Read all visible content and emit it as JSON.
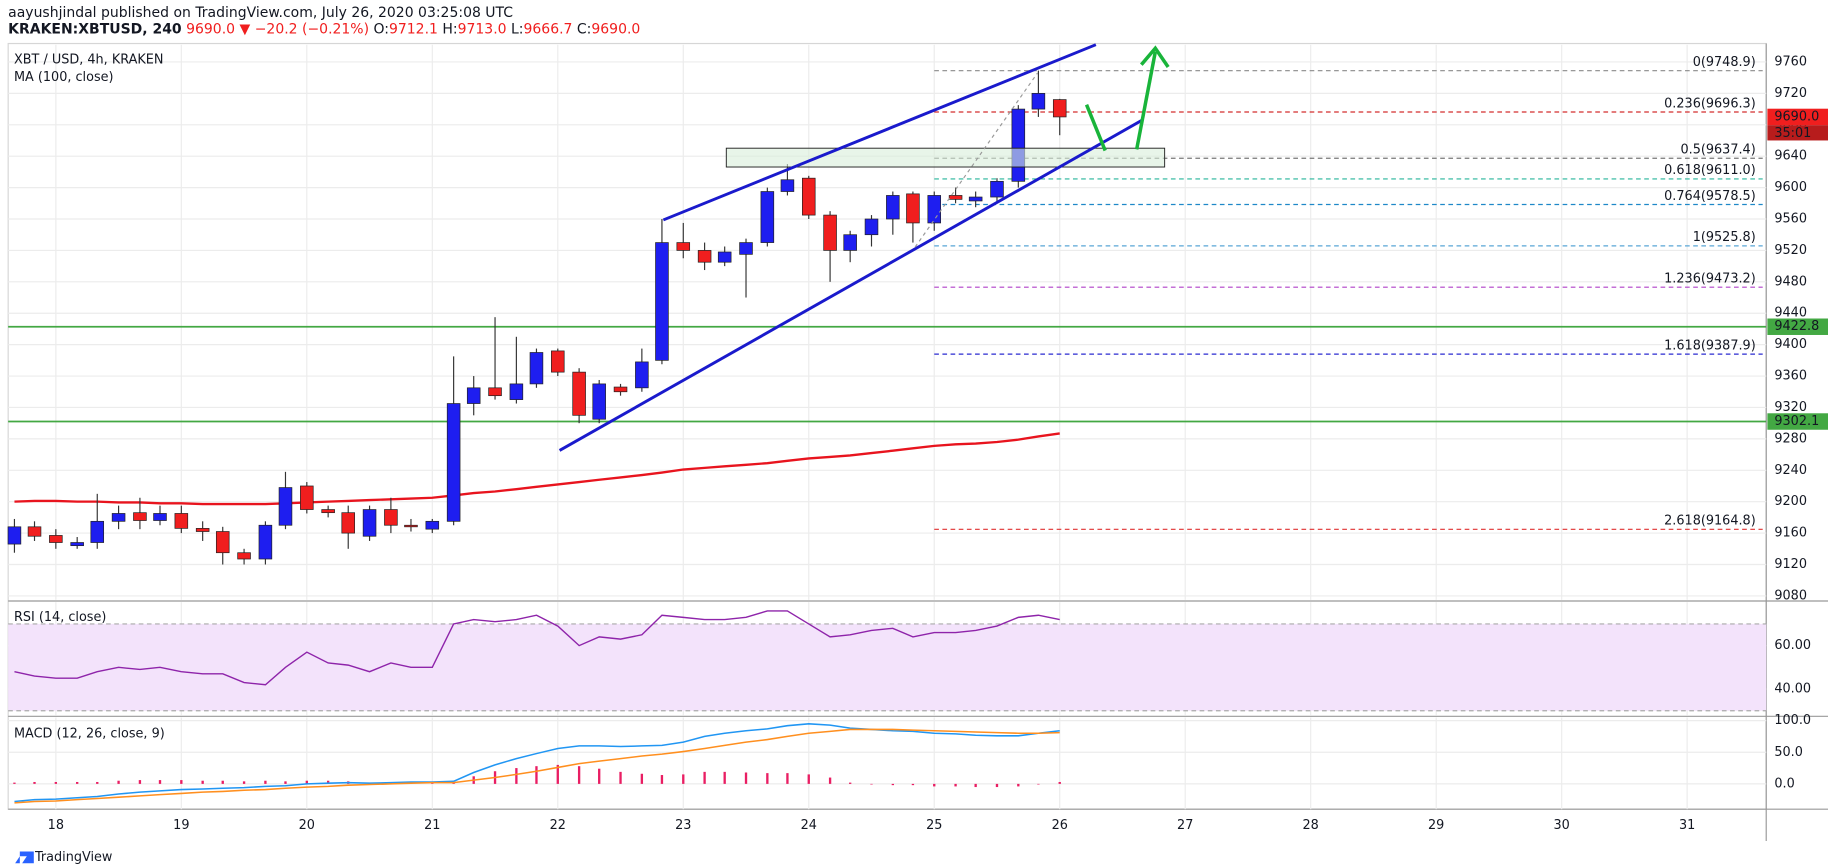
{
  "header": {
    "byline": "aayushjindal published on TradingView.com, July 26, 2020 03:25:08 UTC",
    "symbol": "KRAKEN:XBTUSD, 240",
    "last": "9690.0",
    "change": "▼ −20.2 (−0.21%)",
    "ohlc": [
      {
        "key": "O:",
        "value": "9712.1"
      },
      {
        "key": "H:",
        "value": "9713.0"
      },
      {
        "key": "L:",
        "value": "9666.7"
      },
      {
        "key": "C:",
        "value": "9690.0"
      }
    ]
  },
  "footer": {
    "brand": "TradingView"
  },
  "chart_data": [
    {
      "type": "candlestick",
      "title": "XBT / USD, 4h, KRAKEN",
      "x": [
        17.67,
        17.83,
        18,
        18.17,
        18.33,
        18.5,
        18.67,
        18.83,
        19,
        19.17,
        19.33,
        19.5,
        19.67,
        19.83,
        20,
        20.17,
        20.33,
        20.5,
        20.67,
        20.83,
        21,
        21.17,
        21.33,
        21.5,
        21.67,
        21.83,
        22,
        22.17,
        22.33,
        22.5,
        22.67,
        22.83,
        23,
        23.17,
        23.33,
        23.5,
        23.67,
        23.83,
        24,
        24.17,
        24.33,
        24.5,
        24.67,
        24.83,
        25,
        25.17,
        25.33,
        25.5,
        25.67,
        25.83,
        26
      ],
      "open": [
        9146,
        9168,
        9157,
        9144,
        9148,
        9175,
        9186,
        9176,
        9185,
        9166,
        9162,
        9135,
        9127,
        9170,
        9220,
        9190,
        9186,
        9156,
        9190,
        9170,
        9165,
        9175,
        9325,
        9345,
        9330,
        9350,
        9392,
        9365,
        9305,
        9346,
        9345,
        9380,
        9530,
        9520,
        9505,
        9515,
        9530,
        9595,
        9612,
        9565,
        9520,
        9540,
        9560,
        9592,
        9555,
        9590,
        9583,
        9588,
        9608,
        9700,
        9712.1
      ],
      "high": [
        9178,
        9175,
        9165,
        9155,
        9210,
        9195,
        9205,
        9195,
        9195,
        9175,
        9168,
        9140,
        9175,
        9238,
        9225,
        9195,
        9195,
        9195,
        9205,
        9178,
        9178,
        9385,
        9360,
        9435,
        9410,
        9395,
        9395,
        9370,
        9355,
        9350,
        9395,
        9560,
        9555,
        9530,
        9525,
        9535,
        9600,
        9630,
        9615,
        9570,
        9545,
        9565,
        9595,
        9595,
        9595,
        9600,
        9595,
        9612,
        9705,
        9749,
        9713
      ],
      "low": [
        9135,
        9150,
        9140,
        9140,
        9140,
        9165,
        9165,
        9170,
        9160,
        9150,
        9120,
        9120,
        9120,
        9165,
        9185,
        9180,
        9140,
        9150,
        9160,
        9162,
        9160,
        9170,
        9310,
        9330,
        9325,
        9345,
        9360,
        9300,
        9300,
        9335,
        9340,
        9375,
        9510,
        9495,
        9500,
        9460,
        9525,
        9590,
        9560,
        9480,
        9505,
        9525,
        9540,
        9530,
        9545,
        9580,
        9575,
        9580,
        9600,
        9690,
        9666.7
      ],
      "close": [
        9168,
        9156,
        9148,
        9148,
        9175,
        9185,
        9176,
        9185,
        9166,
        9162,
        9135,
        9127,
        9170,
        9218,
        9190,
        9186,
        9160,
        9190,
        9170,
        9168,
        9175,
        9325,
        9345,
        9335,
        9350,
        9390,
        9365,
        9310,
        9350,
        9340,
        9378,
        9530,
        9520,
        9505,
        9518,
        9530,
        9595,
        9610,
        9565,
        9520,
        9540,
        9560,
        9590,
        9555,
        9590,
        9585,
        9588,
        9608,
        9700,
        9720,
        9690
      ],
      "up_color": "#1e1ef0",
      "down_color": "#f01e1e",
      "xlim": [
        17.62,
        31.63
      ],
      "xticks": [
        18,
        19,
        20,
        21,
        22,
        23,
        24,
        25,
        26,
        27,
        28,
        29,
        30,
        31
      ],
      "ylim": [
        9075,
        9782
      ],
      "yticks": [
        9080,
        9120,
        9160,
        9200,
        9240,
        9280,
        9320,
        9360,
        9400,
        9440,
        9480,
        9520,
        9560,
        9600,
        9640,
        9680,
        9720,
        9760
      ],
      "grid": true,
      "series": [
        {
          "name": "MA (100, close)",
          "color": "#e8141e",
          "values": [
            9200,
            9201,
            9201,
            9200,
            9200,
            9199,
            9199,
            9198,
            9198,
            9197,
            9197,
            9197,
            9197,
            9198,
            9199,
            9200,
            9201,
            9202,
            9203,
            9204,
            9205,
            9208,
            9211,
            9213,
            9216,
            9219,
            9222,
            9225,
            9228,
            9231,
            9234,
            9237,
            9241,
            9243,
            9245,
            9247,
            9249,
            9252,
            9255,
            9257,
            9259,
            9262,
            9265,
            9268,
            9271,
            9273,
            9274,
            9276,
            9279,
            9283,
            9287
          ]
        }
      ],
      "hlines": [
        {
          "value": 9422.8,
          "label": "9422.8",
          "color": "#43a843"
        },
        {
          "value": 9302.1,
          "label": "9302.1",
          "color": "#43a843"
        }
      ],
      "fib_levels": [
        {
          "value": 9748.9,
          "label": "0(9748.9)",
          "color": "#8a8a8a"
        },
        {
          "value": 9696.3,
          "label": "0.236(9696.3)",
          "color": "#d32f2f"
        },
        {
          "value": 9637.4,
          "label": "0.5(9637.4)",
          "color": "#777777"
        },
        {
          "value": 9611.0,
          "label": "0.618(9611.0)",
          "color": "#26b59a"
        },
        {
          "value": 9578.5,
          "label": "0.764(9578.5)",
          "color": "#1e88c8"
        },
        {
          "value": 9525.8,
          "label": "1(9525.8)",
          "color": "#59a6d6"
        },
        {
          "value": 9473.2,
          "label": "1.236(9473.2)",
          "color": "#b040c8"
        },
        {
          "value": 9387.9,
          "label": "1.618(9387.9)",
          "color": "#2a2ad0"
        },
        {
          "value": 9164.8,
          "label": "2.618(9164.8)",
          "color": "#e03030"
        }
      ],
      "last_price": {
        "value": 9690,
        "label": "9690.0",
        "countdown": "35:01",
        "color": "#f01e1e"
      }
    },
    {
      "type": "line",
      "title": "RSI (14, close)",
      "series": [
        {
          "color": "#8e24aa",
          "values": [
            48,
            46,
            45,
            45,
            48,
            50,
            49,
            50,
            48,
            47,
            47,
            43,
            42,
            50,
            57,
            52,
            51,
            48,
            52,
            50,
            50,
            70,
            72,
            71,
            72,
            74,
            69,
            60,
            64,
            63,
            65,
            74,
            73,
            72,
            72,
            73,
            76,
            76,
            70,
            64,
            65,
            67,
            68,
            64,
            66,
            66,
            67,
            69,
            73,
            74,
            72
          ]
        }
      ],
      "band": [
        30,
        70
      ],
      "band_color": "#f3e3fb",
      "ylim": [
        28,
        80
      ],
      "yticks": [
        {
          "value": 40,
          "label": "40.00"
        },
        {
          "value": 60,
          "label": "60.00"
        }
      ]
    },
    {
      "type": "macd",
      "title": "MACD (12, 26, close, 9)",
      "series": [
        {
          "color": "#2196f3",
          "values": [
            -28,
            -25,
            -24,
            -22,
            -20,
            -16,
            -13,
            -11,
            -9,
            -8,
            -7,
            -6,
            -4,
            -3,
            0,
            1,
            2,
            1,
            2,
            3,
            3,
            4,
            18,
            30,
            40,
            48,
            56,
            60,
            60,
            59,
            60,
            61,
            66,
            75,
            80,
            84,
            87,
            92,
            95,
            93,
            88,
            86,
            84,
            83,
            80,
            79,
            77,
            76,
            76,
            80,
            84
          ]
        },
        {
          "color": "#ff8f1f",
          "values": [
            -30,
            -28,
            -27,
            -25,
            -23,
            -21,
            -19,
            -17,
            -15,
            -13,
            -12,
            -10,
            -9,
            -7,
            -5,
            -4,
            -2,
            -1,
            0,
            1,
            2,
            2,
            6,
            10,
            15,
            20,
            26,
            32,
            36,
            40,
            44,
            47,
            51,
            56,
            61,
            66,
            70,
            75,
            80,
            83,
            86,
            86,
            86,
            85,
            84,
            83,
            82,
            81,
            80,
            80,
            81
          ]
        }
      ],
      "histogram": {
        "color": "#e91e63",
        "values": [
          2,
          3,
          3,
          3,
          3,
          5,
          6,
          6,
          6,
          5,
          5,
          4,
          5,
          4,
          5,
          5,
          4,
          2,
          2,
          2,
          1,
          2,
          12,
          20,
          25,
          28,
          30,
          28,
          24,
          19,
          16,
          14,
          15,
          19,
          19,
          18,
          17,
          17,
          15,
          10,
          2,
          0,
          -2,
          -2,
          -4,
          -4,
          -5,
          -5,
          -4,
          0,
          3
        ]
      },
      "ylim": [
        -40,
        105
      ],
      "yticks": [
        {
          "value": 0,
          "label": "0.0"
        },
        {
          "value": 50,
          "label": "50.0"
        },
        {
          "value": 100,
          "label": "100.0"
        }
      ]
    }
  ]
}
